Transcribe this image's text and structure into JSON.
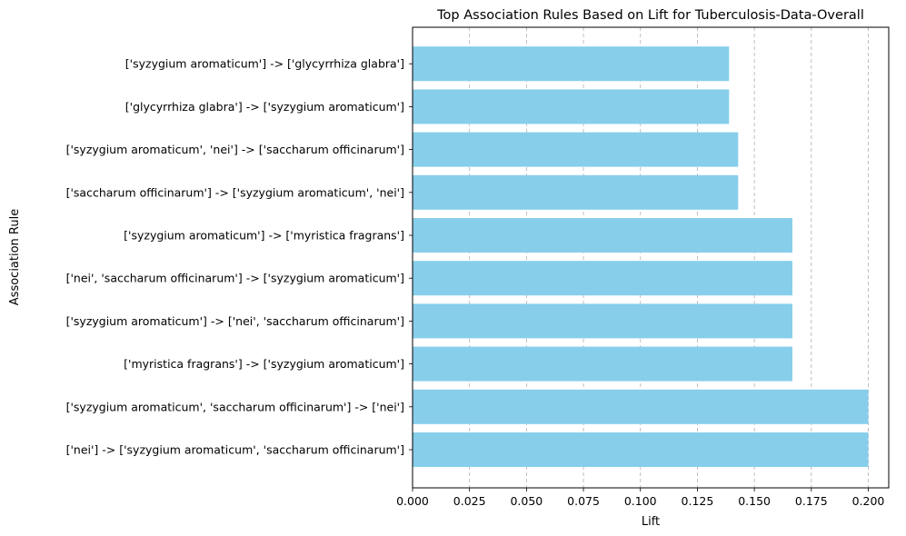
{
  "chart_data": {
    "type": "bar",
    "orientation": "horizontal",
    "title": "Top Association Rules Based on Lift for Tuberculosis-Data-Overall",
    "xlabel": "Lift",
    "ylabel": "Association Rule",
    "xlim": [
      0.0,
      0.21
    ],
    "xticks": [
      "0.000",
      "0.025",
      "0.050",
      "0.075",
      "0.100",
      "0.125",
      "0.150",
      "0.175",
      "0.200"
    ],
    "grid": "x-dashed",
    "bar_color": "#87CEEB",
    "categories": [
      "['nei'] -> ['syzygium aromaticum', 'saccharum officinarum']",
      "['syzygium aromaticum', 'saccharum officinarum'] -> ['nei']",
      "['myristica fragrans'] -> ['syzygium aromaticum']",
      "['syzygium aromaticum'] -> ['nei', 'saccharum officinarum']",
      "['nei', 'saccharum officinarum'] -> ['syzygium aromaticum']",
      "['syzygium aromaticum'] -> ['myristica fragrans']",
      "['saccharum officinarum'] -> ['syzygium aromaticum', 'nei']",
      "['syzygium aromaticum', 'nei'] -> ['saccharum officinarum']",
      "['glycyrrhiza glabra'] -> ['syzygium aromaticum']",
      "['syzygium aromaticum'] -> ['glycyrrhiza glabra']"
    ],
    "values": [
      0.2,
      0.2,
      0.1667,
      0.1667,
      0.1667,
      0.1667,
      0.1429,
      0.1429,
      0.1389,
      0.1389
    ]
  }
}
